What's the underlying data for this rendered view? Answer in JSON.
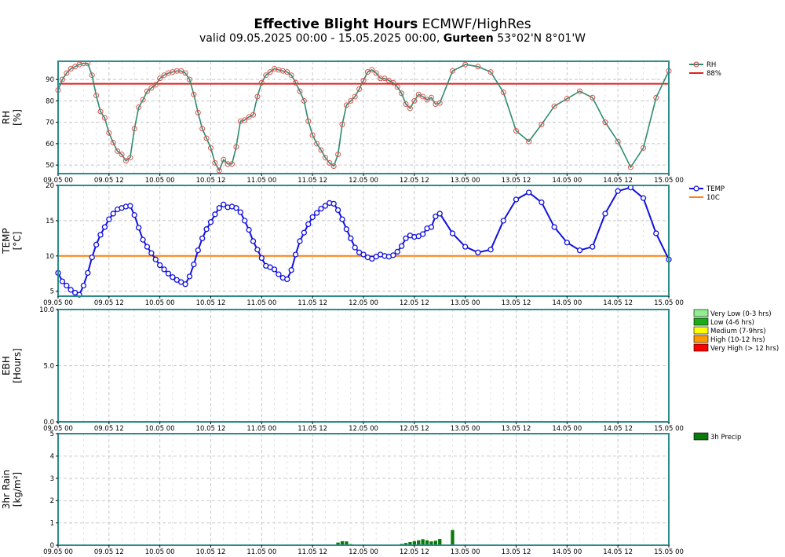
{
  "header": {
    "title_bold": "Effective Blight Hours",
    "title_rest": " ECMWF/HighRes",
    "subtitle_prefix": "valid 09.05.2025 00:00 - 15.05.2025 00:00, ",
    "subtitle_location": "Gurteen",
    "subtitle_coords": " 53°02'N 8°01'W"
  },
  "colors": {
    "rh_line": "#2e8b6e",
    "rh_marker": "#d9534f",
    "rh_threshold": "#e02020",
    "temp_line": "#1010e0",
    "temp_threshold": "#ff7f0e",
    "precip": "#0a7a0a",
    "frame": "#2a8c8c",
    "grid": "#c8c8c8"
  },
  "chart_data": [
    {
      "id": "rh",
      "type": "line",
      "ylabel_line1": "RH",
      "ylabel_line2": "[%]",
      "ylim": [
        46,
        98.5
      ],
      "yticks": [
        50,
        60,
        70,
        80,
        90
      ],
      "xlim": [
        0,
        144
      ],
      "xticks": [
        0,
        12,
        24,
        36,
        48,
        60,
        72,
        84,
        96,
        108,
        120,
        132,
        144
      ],
      "xticklabels": [
        "09.05 00",
        "09.05 12",
        "10.05 00",
        "10.05 12",
        "11.05 00",
        "11.05 12",
        "12.05 00",
        "12.05 12",
        "13.05 00",
        "13.05 12",
        "14.05 00",
        "14.05 12",
        "15.05 00"
      ],
      "grid": true,
      "legend": [
        {
          "label": "RH",
          "kind": "line-marker"
        },
        {
          "label": "88%",
          "kind": "line"
        }
      ],
      "threshold": 88,
      "series": [
        {
          "name": "RH",
          "x": [
            0,
            1,
            2,
            3,
            4,
            5,
            6,
            7,
            8,
            9,
            10,
            11,
            12,
            13,
            14,
            15,
            16,
            17,
            18,
            19,
            20,
            21,
            22,
            23,
            24,
            25,
            26,
            27,
            28,
            29,
            30,
            31,
            32,
            33,
            34,
            35,
            36,
            37,
            38,
            39,
            40,
            41,
            42,
            43,
            44,
            45,
            46,
            47,
            48,
            49,
            50,
            51,
            52,
            53,
            54,
            55,
            56,
            57,
            58,
            59,
            60,
            61,
            62,
            63,
            64,
            65,
            66,
            67,
            68,
            69,
            70,
            71,
            72,
            73,
            74,
            75,
            76,
            77,
            78,
            79,
            80,
            81,
            82,
            83,
            84,
            85,
            86,
            87,
            88,
            89,
            90,
            93,
            96,
            99,
            102,
            105,
            108,
            111,
            114,
            117,
            120,
            123,
            126,
            129,
            132,
            135,
            138,
            141,
            144
          ],
          "y": [
            85,
            90,
            93,
            95,
            96,
            97,
            97.5,
            97.5,
            92,
            82.5,
            75,
            72,
            65,
            60.5,
            56.5,
            55,
            52,
            53.5,
            67,
            77,
            80.5,
            84.5,
            86,
            87.5,
            90.5,
            92,
            93,
            93.5,
            94,
            94,
            93,
            90,
            83,
            74.5,
            67,
            62.5,
            58,
            51,
            47.5,
            52.5,
            50.5,
            50.5,
            58.5,
            70.5,
            71,
            72.5,
            73.5,
            82,
            88.5,
            92,
            93.5,
            95,
            94.5,
            94,
            93.5,
            92,
            88.5,
            84.5,
            80,
            70.5,
            64,
            60,
            57,
            53.5,
            51,
            49.5,
            55,
            69,
            78,
            80,
            82,
            85.5,
            89.5,
            93.5,
            94.5,
            93,
            90.5,
            90.5,
            89.5,
            88.5,
            86.5,
            83.5,
            78.5,
            76.5,
            80,
            83,
            82,
            80.5,
            81.5,
            78.5,
            79,
            94,
            97,
            96,
            93.5,
            84,
            66,
            61,
            69,
            77.5,
            81,
            84.5,
            81.5,
            70,
            61,
            49,
            58,
            81.5,
            94
          ]
        }
      ]
    },
    {
      "id": "temp",
      "type": "line",
      "ylabel_line1": "TEMP",
      "ylabel_line2": "[°C]",
      "ylim": [
        4.3,
        20
      ],
      "yticks": [
        5,
        10,
        15,
        20
      ],
      "xlim": [
        0,
        144
      ],
      "xticks": [
        0,
        12,
        24,
        36,
        48,
        60,
        72,
        84,
        96,
        108,
        120,
        132,
        144
      ],
      "xticklabels": [
        "09.05 00",
        "09.05 12",
        "10.05 00",
        "10.05 12",
        "11.05 00",
        "11.05 12",
        "12.05 00",
        "12.05 12",
        "13.05 00",
        "13.05 12",
        "14.05 00",
        "14.05 12",
        "15.05 00"
      ],
      "grid": true,
      "legend": [
        {
          "label": "TEMP",
          "kind": "line-marker"
        },
        {
          "label": "10C",
          "kind": "line"
        }
      ],
      "threshold": 10,
      "series": [
        {
          "name": "TEMP",
          "x": [
            0,
            1,
            2,
            3,
            4,
            5,
            6,
            7,
            8,
            9,
            10,
            11,
            12,
            13,
            14,
            15,
            16,
            17,
            18,
            19,
            20,
            21,
            22,
            23,
            24,
            25,
            26,
            27,
            28,
            29,
            30,
            31,
            32,
            33,
            34,
            35,
            36,
            37,
            38,
            39,
            40,
            41,
            42,
            43,
            44,
            45,
            46,
            47,
            48,
            49,
            50,
            51,
            52,
            53,
            54,
            55,
            56,
            57,
            58,
            59,
            60,
            61,
            62,
            63,
            64,
            65,
            66,
            67,
            68,
            69,
            70,
            71,
            72,
            73,
            74,
            75,
            76,
            77,
            78,
            79,
            80,
            81,
            82,
            83,
            84,
            85,
            86,
            87,
            88,
            89,
            90,
            93,
            96,
            99,
            102,
            105,
            108,
            111,
            114,
            117,
            120,
            123,
            126,
            129,
            132,
            135,
            138,
            141,
            144
          ],
          "y": [
            7.6,
            6.4,
            5.8,
            5.2,
            4.8,
            4.5,
            5.8,
            7.6,
            9.8,
            11.6,
            13,
            14.1,
            15.2,
            16,
            16.6,
            16.8,
            17,
            17.1,
            15.8,
            14,
            12.3,
            11.3,
            10.4,
            9.5,
            8.7,
            8.1,
            7.5,
            7,
            6.6,
            6.3,
            6,
            7.1,
            8.8,
            10.8,
            12.5,
            13.8,
            14.8,
            15.9,
            16.8,
            17.3,
            16.9,
            17,
            16.8,
            16.2,
            15,
            13.7,
            12.1,
            10.9,
            9.7,
            8.6,
            8.4,
            8.1,
            7.4,
            6.9,
            6.7,
            8,
            10.2,
            12.1,
            13.3,
            14.5,
            15.5,
            16.1,
            16.7,
            17.1,
            17.5,
            17.4,
            16.5,
            15.2,
            13.8,
            12.5,
            11.2,
            10.5,
            10.2,
            9.8,
            9.6,
            9.9,
            10.2,
            10,
            9.9,
            10.1,
            10.6,
            11.4,
            12.5,
            12.9,
            12.7,
            12.8,
            13.1,
            13.9,
            14.1,
            15.6,
            16,
            13.2,
            11.3,
            10.5,
            10.9,
            15,
            18,
            19,
            17.6,
            14.1,
            11.9,
            10.8,
            11.3,
            16,
            19.2,
            19.7,
            18.2,
            13.2,
            9.5
          ]
        }
      ]
    },
    {
      "id": "ebh",
      "type": "bar",
      "ylabel_line1": "EBH",
      "ylabel_line2": "[Hours]",
      "ylim": [
        0,
        10
      ],
      "yticks": [
        0.0,
        5.0,
        10.0
      ],
      "yticklabels": [
        "0.0",
        "5.0",
        "10.0"
      ],
      "xlim": [
        0,
        144
      ],
      "xticks": [
        0,
        12,
        24,
        36,
        48,
        60,
        72,
        84,
        96,
        108,
        120,
        132,
        144
      ],
      "xticklabels": [
        "09.05 00",
        "09.05 12",
        "10.05 00",
        "10.05 12",
        "11.05 00",
        "11.05 12",
        "12.05 00",
        "12.05 12",
        "13.05 00",
        "13.05 12",
        "14.05 00",
        "14.05 12",
        "15.05 00"
      ],
      "grid": true,
      "legend": [
        {
          "label": "Very Low (0-3 hrs)",
          "color": "#90ee90"
        },
        {
          "label": "Low (4-6 hrs)",
          "color": "#1aaa1a"
        },
        {
          "label": "Medium (7-9hrs)",
          "color": "#ffff00"
        },
        {
          "label": "High (10-12 hrs)",
          "color": "#ff9900"
        },
        {
          "label": "Very High (> 12 hrs)",
          "color": "#ff0000"
        }
      ],
      "series": []
    },
    {
      "id": "rain",
      "type": "bar",
      "ylabel_line1": "3hr Rain",
      "ylabel_line2": "[kg/m²]",
      "ylim": [
        0,
        5
      ],
      "yticks": [
        0,
        1,
        2,
        3,
        4,
        5
      ],
      "xlim": [
        0,
        144
      ],
      "xticks": [
        0,
        12,
        24,
        36,
        48,
        60,
        72,
        84,
        96,
        108,
        120,
        132,
        144
      ],
      "xticklabels": [
        "09.05 00",
        "09.05 12",
        "10.05 00",
        "10.05 12",
        "11.05 00",
        "11.05 12",
        "12.05 00",
        "12.05 12",
        "13.05 00",
        "13.05 12",
        "14.05 00",
        "14.05 12",
        "15.05 00"
      ],
      "grid": true,
      "legend": [
        {
          "label": "3h Precip",
          "color": "#0a7a0a"
        }
      ],
      "series": [
        {
          "name": "3h Precip",
          "x": [
            66,
            67,
            68,
            69,
            81,
            82,
            83,
            84,
            85,
            86,
            87,
            88,
            89,
            90,
            93
          ],
          "y": [
            0.12,
            0.18,
            0.17,
            0.05,
            0.06,
            0.1,
            0.14,
            0.18,
            0.22,
            0.27,
            0.22,
            0.17,
            0.2,
            0.28,
            0.68
          ]
        }
      ]
    }
  ]
}
